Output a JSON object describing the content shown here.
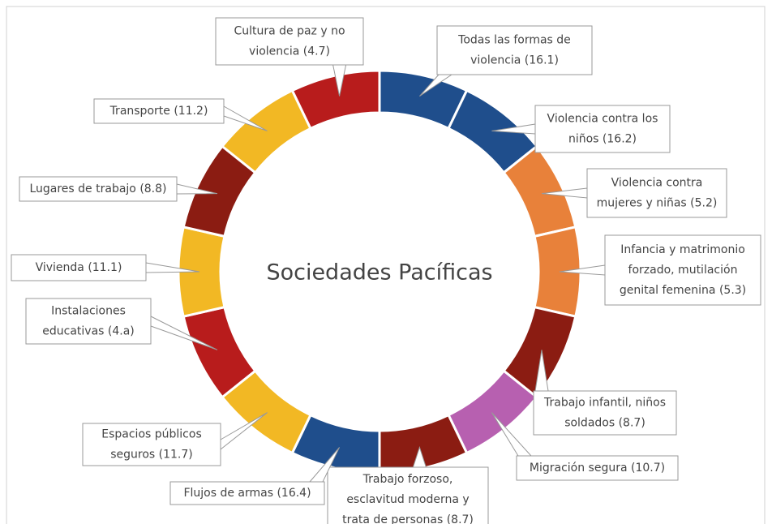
{
  "title": "Sociedades Pacíficas",
  "segments": [
    {
      "label": [
        "Todas las formas de",
        "violencia (16.1)"
      ],
      "color": "#1f4e8c"
    },
    {
      "label": [
        "Violencia contra los",
        "niños (16.2)"
      ],
      "color": "#1f4e8c"
    },
    {
      "label": [
        "Violencia contra",
        "mujeres y niñas (5.2)"
      ],
      "color": "#e8813a"
    },
    {
      "label": [
        "Infancia y matrimonio",
        "forzado, mutilación",
        "genital femenina (5.3)"
      ],
      "color": "#e8813a"
    },
    {
      "label": [
        "Trabajo infantil, niños",
        "soldados (8.7)"
      ],
      "color": "#8b1c12"
    },
    {
      "label": [
        "Migración segura (10.7)"
      ],
      "color": "#b760b0"
    },
    {
      "label": [
        "Trabajo forzoso,",
        "esclavitud moderna y",
        "trata de personas (8.7)"
      ],
      "color": "#8b1c12"
    },
    {
      "label": [
        "Flujos de armas (16.4)"
      ],
      "color": "#1f4e8c"
    },
    {
      "label": [
        "Espacios públicos",
        "seguros (11.7)"
      ],
      "color": "#f2b824"
    },
    {
      "label": [
        "Instalaciones",
        "educativas (4.a)"
      ],
      "color": "#b81c1c"
    },
    {
      "label": [
        "Vivienda (11.1)"
      ],
      "color": "#f2b824"
    },
    {
      "label": [
        "Lugares de trabajo (8.8)"
      ],
      "color": "#8b1c12"
    },
    {
      "label": [
        "Transporte (11.2)"
      ],
      "color": "#f2b824"
    },
    {
      "label": [
        "Cultura de paz y no",
        "violencia (4.7)"
      ],
      "color": "#b81c1c"
    }
  ]
}
